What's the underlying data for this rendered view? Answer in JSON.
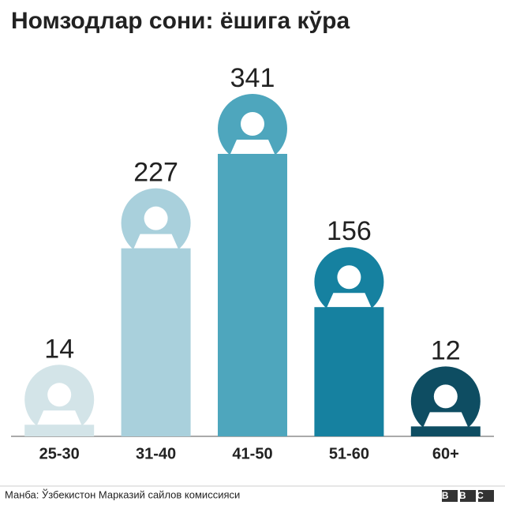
{
  "chart_data": {
    "type": "bar",
    "title": "Номзодлар сони: ёшига кўра",
    "categories": [
      "25-30",
      "31-40",
      "41-50",
      "51-60",
      "60+"
    ],
    "values": [
      14,
      227,
      341,
      156,
      12
    ],
    "colors": [
      "#d3e4e8",
      "#a9d0dc",
      "#4ea6bd",
      "#1681a0",
      "#0e4d62"
    ],
    "source": "Манба: Ўзбекистон Марказий сайлов комиссияси",
    "logo": "BBC"
  }
}
